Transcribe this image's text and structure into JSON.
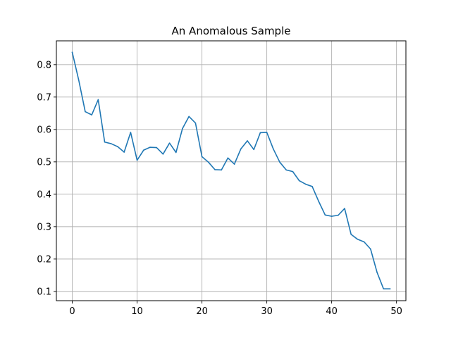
{
  "chart_data": {
    "type": "line",
    "title": "An Anomalous Sample",
    "xlabel": "",
    "ylabel": "",
    "xlim": [
      -2.45,
      51.45
    ],
    "ylim": [
      0.0715,
      0.8735
    ],
    "xticks": [
      0,
      10,
      20,
      30,
      40,
      50
    ],
    "yticks": [
      0.1,
      0.2,
      0.3,
      0.4,
      0.5,
      0.6,
      0.7,
      0.8
    ],
    "xtick_labels": [
      "0",
      "10",
      "20",
      "30",
      "40",
      "50"
    ],
    "ytick_labels": [
      "0.1",
      "0.2",
      "0.3",
      "0.4",
      "0.5",
      "0.6",
      "0.7",
      "0.8"
    ],
    "grid": true,
    "line_color": "#1f77b4",
    "grid_color": "#b0b0b0",
    "series": [
      {
        "x": [
          0,
          1,
          2,
          3,
          4,
          5,
          6,
          7,
          8,
          9,
          10,
          11,
          12,
          13,
          14,
          15,
          16,
          17,
          18,
          19,
          20,
          21,
          22,
          23,
          24,
          25,
          26,
          27,
          28,
          29,
          30,
          31,
          32,
          33,
          34,
          35,
          36,
          37,
          38,
          39,
          40,
          41,
          42,
          43,
          44,
          45,
          46,
          47,
          48,
          49
        ],
        "values": [
          0.838,
          0.752,
          0.655,
          0.645,
          0.692,
          0.561,
          0.556,
          0.547,
          0.53,
          0.591,
          0.505,
          0.536,
          0.545,
          0.544,
          0.524,
          0.558,
          0.529,
          0.603,
          0.64,
          0.62,
          0.516,
          0.499,
          0.476,
          0.475,
          0.512,
          0.493,
          0.54,
          0.565,
          0.538,
          0.59,
          0.591,
          0.54,
          0.499,
          0.475,
          0.47,
          0.442,
          0.431,
          0.424,
          0.378,
          0.336,
          0.332,
          0.335,
          0.356,
          0.276,
          0.261,
          0.253,
          0.231,
          0.159,
          0.108,
          0.108
        ]
      }
    ]
  }
}
